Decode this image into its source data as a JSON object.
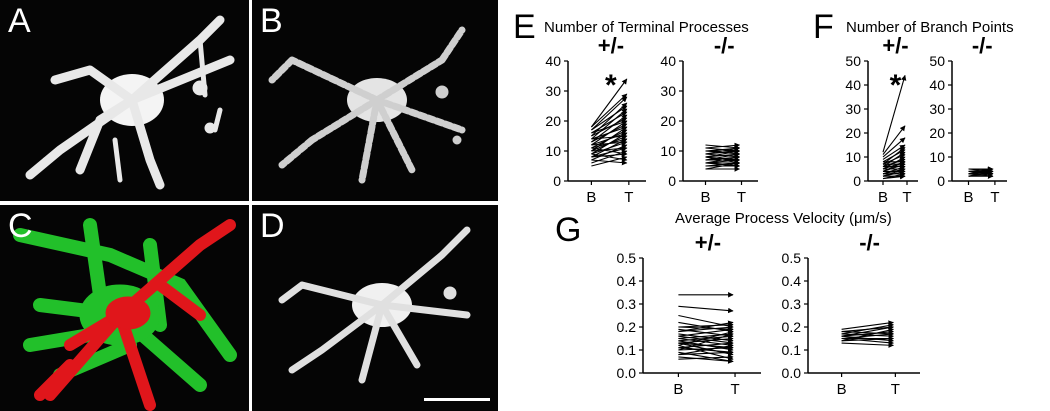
{
  "image_panels": [
    {
      "letter": "A",
      "kind": "grayscale"
    },
    {
      "letter": "B",
      "kind": "grayscale"
    },
    {
      "letter": "C",
      "kind": "overlay",
      "colors": {
        "green": "#22c02a",
        "red": "#e0161b"
      }
    },
    {
      "letter": "D",
      "kind": "grayscale"
    }
  ],
  "panel_e": {
    "letter": "E",
    "title": "Number of Terminal Processes",
    "chart_data": {
      "type": "line",
      "categories": [
        "B",
        "T"
      ],
      "ylim_left": [
        0,
        40
      ],
      "yticks_left": [
        "0",
        "10",
        "20",
        "30",
        "40"
      ],
      "ylim_right": [
        0,
        40
      ],
      "yticks_right": [
        "0",
        "10",
        "20",
        "30",
        "40"
      ],
      "groups": [
        {
          "label": "+/-",
          "marker": "*",
          "pairs": [
            [
              5,
              8
            ],
            [
              6,
              10
            ],
            [
              7,
              12
            ],
            [
              8,
              11
            ],
            [
              8,
              14
            ],
            [
              9,
              13
            ],
            [
              9,
              16
            ],
            [
              10,
              15
            ],
            [
              10,
              18
            ],
            [
              11,
              14
            ],
            [
              11,
              17
            ],
            [
              12,
              20
            ],
            [
              12,
              16
            ],
            [
              13,
              19
            ],
            [
              13,
              22
            ],
            [
              14,
              18
            ],
            [
              14,
              24
            ],
            [
              15,
              21
            ],
            [
              15,
              26
            ],
            [
              16,
              20
            ],
            [
              16,
              23
            ],
            [
              17,
              25
            ],
            [
              17,
              28
            ],
            [
              18,
              29
            ],
            [
              18,
              34
            ],
            [
              12,
              13
            ],
            [
              10,
              11
            ],
            [
              8,
              9
            ],
            [
              14,
              15
            ],
            [
              9,
              7
            ],
            [
              11,
              9
            ],
            [
              7,
              6
            ]
          ]
        },
        {
          "label": "-/-",
          "marker": "",
          "pairs": [
            [
              4,
              6
            ],
            [
              5,
              6
            ],
            [
              6,
              7
            ],
            [
              6,
              8
            ],
            [
              7,
              8
            ],
            [
              7,
              9
            ],
            [
              8,
              9
            ],
            [
              8,
              10
            ],
            [
              9,
              10
            ],
            [
              9,
              11
            ],
            [
              10,
              10
            ],
            [
              10,
              11
            ],
            [
              11,
              12
            ],
            [
              5,
              5
            ],
            [
              6,
              6
            ],
            [
              7,
              7
            ],
            [
              8,
              7
            ],
            [
              9,
              8
            ],
            [
              10,
              9
            ],
            [
              11,
              10
            ],
            [
              12,
              11
            ],
            [
              4,
              4
            ],
            [
              6,
              5
            ],
            [
              8,
              6
            ]
          ]
        }
      ]
    }
  },
  "panel_f": {
    "letter": "F",
    "title": "Number of Branch Points",
    "chart_data": {
      "type": "line",
      "categories": [
        "B",
        "T"
      ],
      "ylim_left": [
        0,
        50
      ],
      "yticks_left": [
        "0",
        "10",
        "20",
        "30",
        "40",
        "50"
      ],
      "ylim_right": [
        0,
        50
      ],
      "yticks_right": [
        "0",
        "10",
        "20",
        "30",
        "40",
        "50"
      ],
      "groups": [
        {
          "label": "+/-",
          "marker": "*",
          "pairs": [
            [
              1,
              2
            ],
            [
              1,
              3
            ],
            [
              2,
              4
            ],
            [
              2,
              5
            ],
            [
              3,
              5
            ],
            [
              3,
              6
            ],
            [
              4,
              7
            ],
            [
              4,
              8
            ],
            [
              5,
              8
            ],
            [
              5,
              10
            ],
            [
              6,
              9
            ],
            [
              6,
              12
            ],
            [
              7,
              11
            ],
            [
              7,
              14
            ],
            [
              8,
              13
            ],
            [
              9,
              15
            ],
            [
              10,
              18
            ],
            [
              11,
              23
            ],
            [
              12,
              44
            ],
            [
              2,
              2
            ],
            [
              3,
              3
            ],
            [
              4,
              4
            ],
            [
              5,
              5
            ],
            [
              6,
              6
            ],
            [
              7,
              7
            ],
            [
              8,
              8
            ]
          ]
        },
        {
          "label": "-/-",
          "marker": "",
          "pairs": [
            [
              2,
              3
            ],
            [
              2,
              4
            ],
            [
              3,
              3
            ],
            [
              3,
              4
            ],
            [
              3,
              5
            ],
            [
              4,
              3
            ],
            [
              4,
              4
            ],
            [
              4,
              5
            ],
            [
              5,
              4
            ],
            [
              5,
              5
            ],
            [
              2,
              2
            ],
            [
              3,
              2
            ]
          ]
        }
      ]
    }
  },
  "panel_g": {
    "letter": "G",
    "title": "Average Process Velocity (μm/s)",
    "chart_data": {
      "type": "line",
      "categories": [
        "B",
        "T"
      ],
      "ylim_left": [
        0,
        0.5
      ],
      "yticks_left": [
        "0.0",
        "0.1",
        "0.2",
        "0.3",
        "0.4",
        "0.5"
      ],
      "ylim_right": [
        0,
        0.5
      ],
      "yticks_right": [
        "0.0",
        "0.1",
        "0.2",
        "0.3",
        "0.4",
        "0.5"
      ],
      "groups": [
        {
          "label": "+/-",
          "marker": "",
          "pairs": [
            [
              0.34,
              0.34
            ],
            [
              0.29,
              0.27
            ],
            [
              0.25,
              0.2
            ],
            [
              0.22,
              0.18
            ],
            [
              0.2,
              0.21
            ],
            [
              0.19,
              0.16
            ],
            [
              0.18,
              0.2
            ],
            [
              0.17,
              0.14
            ],
            [
              0.16,
              0.19
            ],
            [
              0.15,
              0.12
            ],
            [
              0.15,
              0.17
            ],
            [
              0.14,
              0.1
            ],
            [
              0.14,
              0.16
            ],
            [
              0.13,
              0.08
            ],
            [
              0.13,
              0.15
            ],
            [
              0.12,
              0.18
            ],
            [
              0.12,
              0.06
            ],
            [
              0.11,
              0.13
            ],
            [
              0.1,
              0.11
            ],
            [
              0.1,
              0.17
            ],
            [
              0.09,
              0.05
            ],
            [
              0.08,
              0.12
            ],
            [
              0.08,
              0.09
            ],
            [
              0.07,
              0.05
            ],
            [
              0.2,
              0.19
            ],
            [
              0.18,
              0.22
            ],
            [
              0.16,
              0.13
            ],
            [
              0.13,
              0.11
            ],
            [
              0.11,
              0.09
            ],
            [
              0.06,
              0.07
            ]
          ]
        },
        {
          "label": "-/-",
          "marker": "",
          "pairs": [
            [
              0.19,
              0.22
            ],
            [
              0.18,
              0.2
            ],
            [
              0.17,
              0.21
            ],
            [
              0.17,
              0.16
            ],
            [
              0.16,
              0.18
            ],
            [
              0.16,
              0.14
            ],
            [
              0.15,
              0.17
            ],
            [
              0.15,
              0.13
            ],
            [
              0.14,
              0.15
            ],
            [
              0.14,
              0.19
            ],
            [
              0.13,
              0.12
            ],
            [
              0.18,
              0.17
            ],
            [
              0.16,
              0.2
            ],
            [
              0.15,
              0.15
            ]
          ]
        }
      ]
    }
  }
}
